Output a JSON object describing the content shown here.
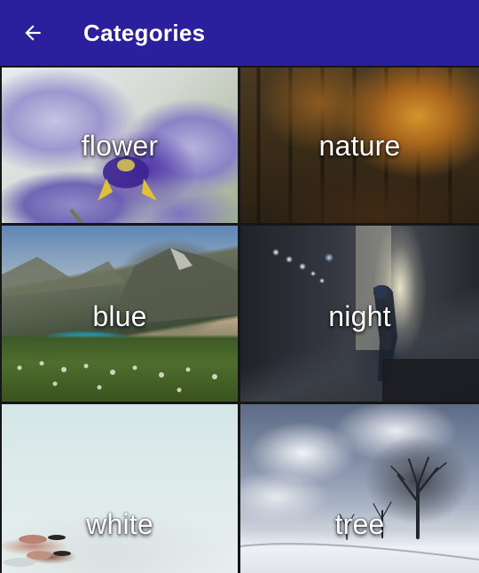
{
  "appbar": {
    "title": "Categories",
    "background_color": "#2a1f9c",
    "back_icon": "arrow-left-icon"
  },
  "categories": [
    {
      "label": "flower"
    },
    {
      "label": "nature"
    },
    {
      "label": "blue"
    },
    {
      "label": "night"
    },
    {
      "label": "white"
    },
    {
      "label": "tree"
    }
  ]
}
